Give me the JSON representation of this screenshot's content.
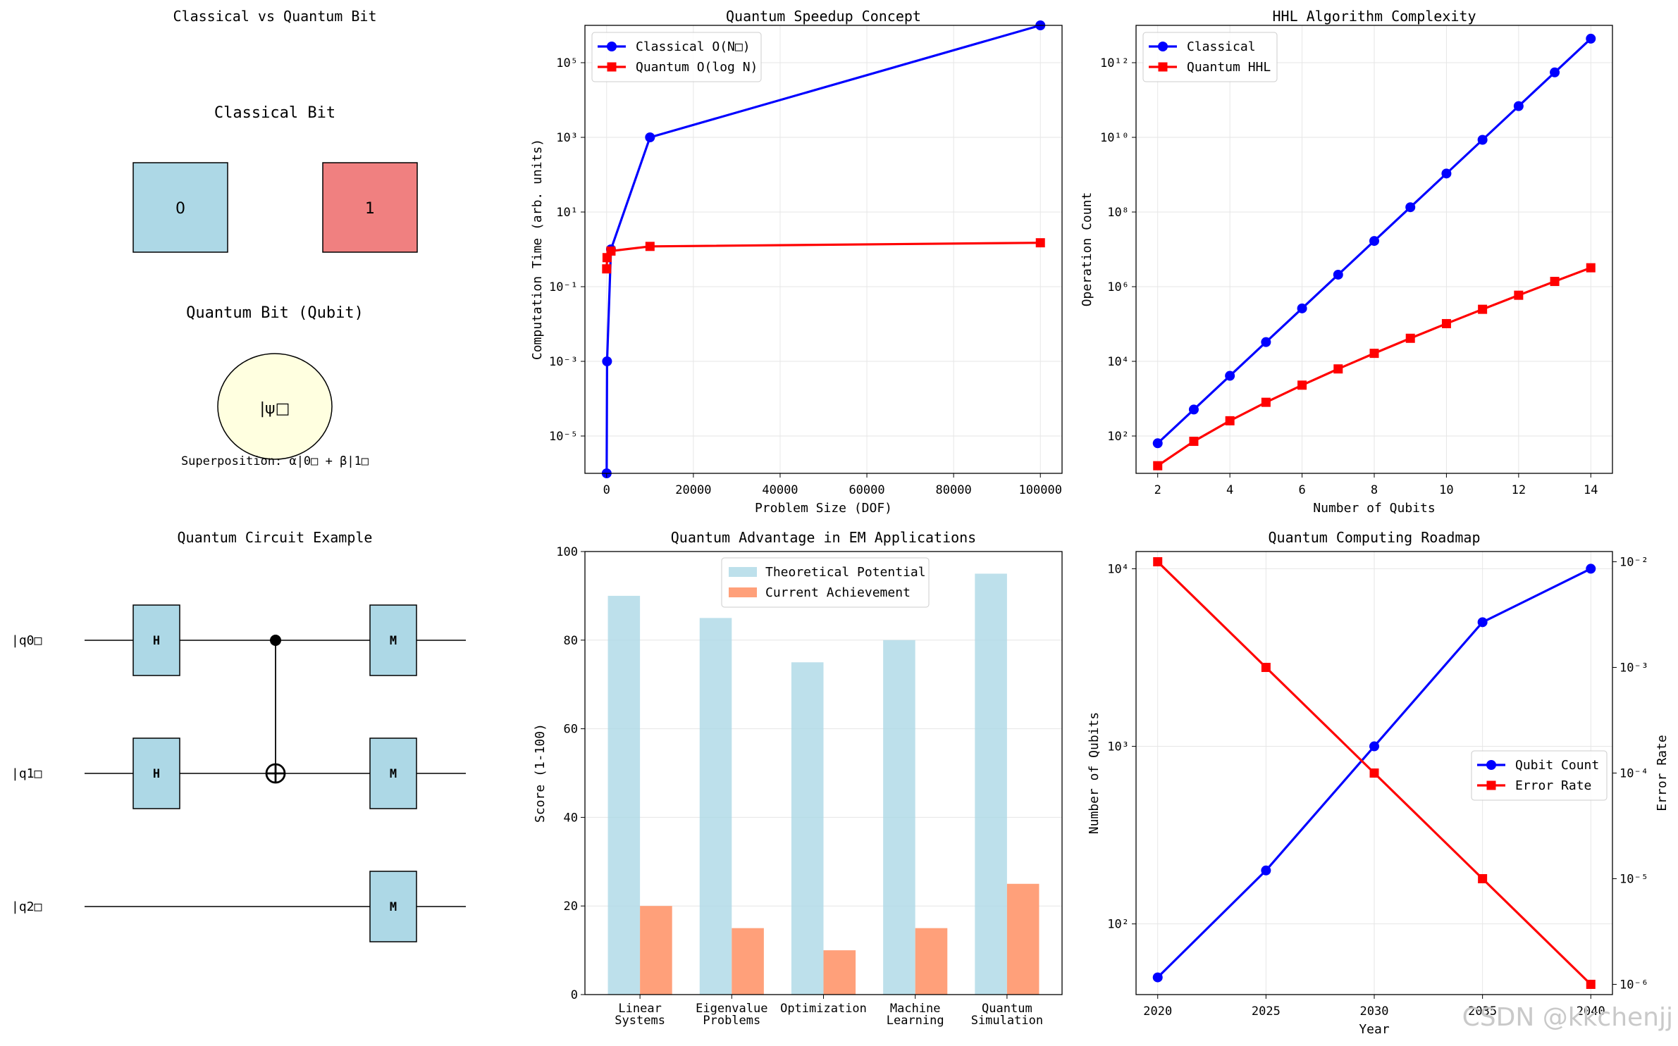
{
  "watermark": "CSDN @kkchenjj",
  "chart_data": [
    {
      "id": "bits",
      "type": "diagram",
      "title": "Classical vs Quantum Bit",
      "classical_title": "Classical Bit",
      "bit0": "0",
      "bit1": "1",
      "bit0_color": "#add8e6",
      "bit1_color": "#f08080",
      "quantum_title": "Quantum Bit (Qubit)",
      "qubit_label": "|ψ□",
      "qubit_color": "#ffffe0",
      "superposition": "Superposition: α|0□ + β|1□"
    },
    {
      "id": "speedup",
      "type": "line",
      "title": "Quantum Speedup Concept",
      "xlabel": "Problem Size (DOF)",
      "ylabel": "Computation Time (arb. units)",
      "yscale": "log",
      "xlim": [
        -5000,
        105000
      ],
      "ylim": [
        1e-06,
        1000000.0
      ],
      "xticks": [
        "0",
        "20000",
        "40000",
        "60000",
        "80000",
        "100000"
      ],
      "yticks": [
        "10⁵",
        "10³",
        "10¹",
        "10⁻¹",
        "10⁻³",
        "10⁻⁵"
      ],
      "legend_position": "top-left",
      "series": [
        {
          "name": "Classical O(N□)",
          "color": "#0000ff",
          "marker": "circle",
          "x": [
            10,
            100,
            1000,
            10000,
            100000
          ],
          "y": [
            1e-06,
            0.001,
            1,
            1000,
            1000000
          ]
        },
        {
          "name": "Quantum O(log N)",
          "color": "#ff0000",
          "marker": "square",
          "x": [
            10,
            100,
            1000,
            10000,
            100000
          ],
          "y": [
            0.3,
            0.6,
            0.9,
            1.2,
            1.5
          ]
        }
      ]
    },
    {
      "id": "hhl",
      "type": "line",
      "title": "HHL Algorithm Complexity",
      "xlabel": "Number of Qubits",
      "ylabel": "Operation Count",
      "yscale": "log",
      "xlim": [
        1.4,
        14.6
      ],
      "ylim": [
        10,
        10000000000000.0
      ],
      "xticks": [
        "2",
        "4",
        "6",
        "8",
        "10",
        "12",
        "14"
      ],
      "yticks": [
        "10¹²",
        "10¹⁰",
        "10⁸",
        "10⁶",
        "10⁴",
        "10²"
      ],
      "legend_position": "top-left",
      "series": [
        {
          "name": "Classical",
          "color": "#0000ff",
          "marker": "circle",
          "x": [
            2,
            3,
            4,
            5,
            6,
            7,
            8,
            9,
            10,
            11,
            12,
            13,
            14
          ],
          "y": [
            64,
            512,
            4096,
            32768,
            262144,
            2097152,
            16777216,
            134217728,
            1073741824,
            8589934592,
            68719476736,
            549755813888,
            4398046511104
          ]
        },
        {
          "name": "Quantum HHL",
          "color": "#ff0000",
          "marker": "square",
          "x": [
            2,
            3,
            4,
            5,
            6,
            7,
            8,
            9,
            10,
            11,
            12,
            13,
            14
          ],
          "y": [
            16,
            72,
            256,
            800,
            2304,
            6272,
            16384,
            41472,
            102400,
            247808,
            589824,
            1384448,
            3211264
          ]
        }
      ]
    },
    {
      "id": "circuit",
      "type": "diagram",
      "title": "Quantum Circuit Example",
      "qubits": [
        "|q0□",
        "|q1□",
        "|q2□"
      ],
      "gates": [
        {
          "label": "H",
          "qubit": 0,
          "step": 0
        },
        {
          "label": "H",
          "qubit": 1,
          "step": 0
        },
        {
          "label": "M",
          "qubit": 0,
          "step": 2
        },
        {
          "label": "M",
          "qubit": 1,
          "step": 2
        },
        {
          "label": "M",
          "qubit": 2,
          "step": 2
        }
      ],
      "cnot": {
        "control": 0,
        "target": 1,
        "step": 1
      },
      "gate_color": "#add8e6"
    },
    {
      "id": "advantage",
      "type": "bar",
      "title": "Quantum Advantage in EM Applications",
      "ylabel": "Score (1-100)",
      "ylim": [
        0,
        100
      ],
      "yticks": [
        "0",
        "20",
        "40",
        "60",
        "80",
        "100"
      ],
      "categories": [
        [
          "Linear",
          "Systems"
        ],
        [
          "Eigenvalue",
          "Problems"
        ],
        [
          "Optimization"
        ],
        [
          "Machine",
          "Learning"
        ],
        [
          "Quantum",
          "Simulation"
        ]
      ],
      "legend_position": "top-center",
      "series": [
        {
          "name": "Theoretical Potential",
          "color": "#add8e6",
          "values": [
            90,
            85,
            75,
            80,
            95
          ]
        },
        {
          "name": "Current Achievement",
          "color": "#ffa07a",
          "values": [
            20,
            15,
            10,
            15,
            25
          ]
        }
      ]
    },
    {
      "id": "roadmap",
      "type": "line",
      "title": "Quantum Computing Roadmap",
      "xlabel": "Year",
      "ylabel_left": "Number of Qubits",
      "ylabel_right": "Error Rate",
      "yscale": "log",
      "xlim": [
        2019,
        2041
      ],
      "ylim_left": [
        40,
        12500
      ],
      "ylim_right": [
        8e-07,
        0.0125
      ],
      "xticks": [
        "2020",
        "2025",
        "2030",
        "2035",
        "2040"
      ],
      "yticks_left": [
        "10⁴",
        "10³",
        "10²"
      ],
      "yticks_right": [
        "10⁻²",
        "10⁻³",
        "10⁻⁴",
        "10⁻⁵",
        "10⁻⁶"
      ],
      "legend_position": "center-right",
      "series": [
        {
          "name": "Qubit Count",
          "color": "#0000ff",
          "marker": "circle",
          "axis": "left",
          "x": [
            2020,
            2025,
            2030,
            2035,
            2040
          ],
          "y": [
            50,
            200,
            1000,
            5000,
            10000
          ]
        },
        {
          "name": "Error Rate",
          "color": "#ff0000",
          "marker": "square",
          "axis": "right",
          "x": [
            2020,
            2025,
            2030,
            2035,
            2040
          ],
          "y": [
            0.01,
            0.001,
            0.0001,
            1e-05,
            1e-06
          ]
        }
      ]
    }
  ]
}
